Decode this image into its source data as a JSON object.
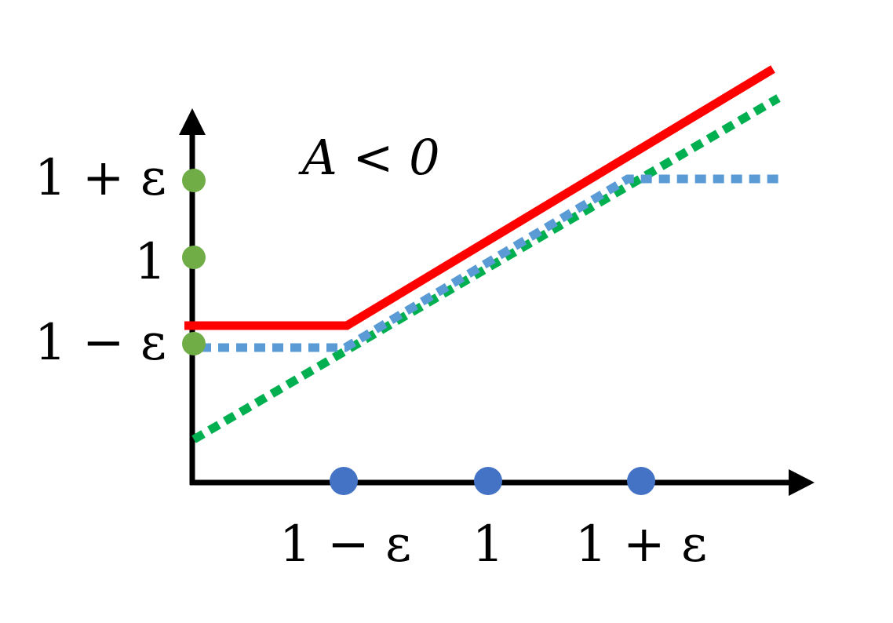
{
  "title": "A < 0",
  "y_labels": [
    "1 + ε",
    "1",
    "1 − ε"
  ],
  "x_labels": [
    "1 − ε",
    "1",
    "1 + ε"
  ],
  "colors": {
    "axis": "#000000",
    "red_line": "#ff0000",
    "blue_dotted": "#5b9bd5",
    "green_dotted": "#00b050",
    "x_dots": "#4472c4",
    "y_dots": "#70ad47"
  }
}
